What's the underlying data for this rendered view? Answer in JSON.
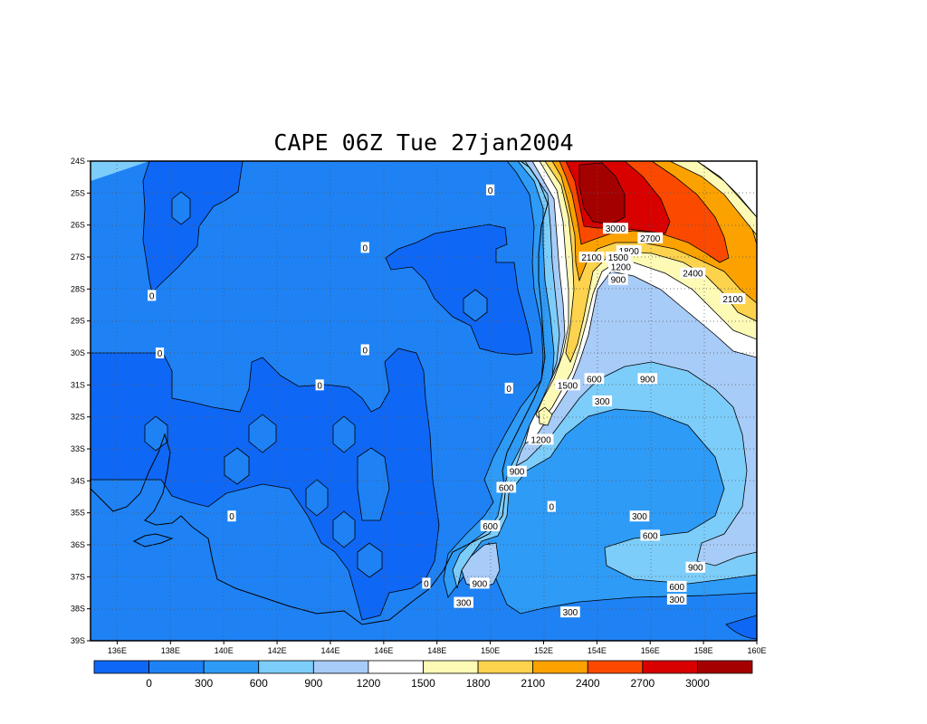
{
  "title": "CAPE 06Z Tue 27jan2004",
  "axes": {
    "y_ticks": [
      "24S",
      "25S",
      "26S",
      "27S",
      "28S",
      "29S",
      "30S",
      "31S",
      "32S",
      "33S",
      "34S",
      "35S",
      "36S",
      "37S",
      "38S",
      "39S"
    ],
    "x_ticks": [
      "136E",
      "138E",
      "140E",
      "142E",
      "144E",
      "146E",
      "148E",
      "150E",
      "152E",
      "154E",
      "156E",
      "158E",
      "160E"
    ],
    "lon_range": [
      135,
      160
    ],
    "lat_range": [
      -24,
      -39
    ],
    "grid": true,
    "grid_style": "dotted"
  },
  "colorbar": {
    "levels": [
      "0",
      "300",
      "600",
      "900",
      "1200",
      "1500",
      "1800",
      "2100",
      "2400",
      "2700",
      "3000"
    ],
    "colors": [
      "#0f67f5",
      "#1e82f5",
      "#2e9bf7",
      "#7dcdfa",
      "#a8ccf8",
      "#ffffff",
      "#fdfab6",
      "#fdd24d",
      "#fba200",
      "#fb4a00",
      "#d90000",
      "#a50000"
    ]
  },
  "chart_data": {
    "type": "heatmap",
    "variable": "CAPE",
    "title": "CAPE 06Z Tue 27jan2004",
    "x_range_deg_east": [
      135,
      160
    ],
    "y_range_deg_south": [
      24,
      39
    ],
    "contour_levels": [
      0,
      300,
      600,
      900,
      1200,
      1500,
      1800,
      2100,
      2400,
      2700,
      3000
    ],
    "contour_labels": [
      {
        "value": "0",
        "lon": 150.0,
        "lat": -24.9
      },
      {
        "value": "0",
        "lon": 145.3,
        "lat": -26.7
      },
      {
        "value": "0",
        "lon": 137.3,
        "lat": -28.2
      },
      {
        "value": "0",
        "lon": 137.6,
        "lat": -30.0
      },
      {
        "value": "0",
        "lon": 145.3,
        "lat": -29.9
      },
      {
        "value": "0",
        "lon": 143.6,
        "lat": -31.0
      },
      {
        "value": "0",
        "lon": 150.7,
        "lat": -31.1
      },
      {
        "value": "0",
        "lon": 140.3,
        "lat": -35.1
      },
      {
        "value": "0",
        "lon": 147.6,
        "lat": -37.2
      },
      {
        "value": "0",
        "lon": 152.3,
        "lat": -34.8
      },
      {
        "value": "3000",
        "lon": 154.7,
        "lat": -26.1
      },
      {
        "value": "2700",
        "lon": 156.0,
        "lat": -26.4
      },
      {
        "value": "2100",
        "lon": 153.8,
        "lat": -27.0
      },
      {
        "value": "1800",
        "lon": 155.2,
        "lat": -26.8
      },
      {
        "value": "1500",
        "lon": 154.8,
        "lat": -27.0
      },
      {
        "value": "1200",
        "lon": 154.9,
        "lat": -27.3
      },
      {
        "value": "900",
        "lon": 154.8,
        "lat": -27.7
      },
      {
        "value": "2400",
        "lon": 157.6,
        "lat": -27.5
      },
      {
        "value": "2100",
        "lon": 159.1,
        "lat": -28.3
      },
      {
        "value": "1500",
        "lon": 152.9,
        "lat": -31.0
      },
      {
        "value": "600",
        "lon": 153.9,
        "lat": -30.8
      },
      {
        "value": "900",
        "lon": 155.9,
        "lat": -30.8
      },
      {
        "value": "300",
        "lon": 154.2,
        "lat": -31.5
      },
      {
        "value": "1200",
        "lon": 151.9,
        "lat": -32.7
      },
      {
        "value": "900",
        "lon": 151.0,
        "lat": -33.7
      },
      {
        "value": "600",
        "lon": 150.6,
        "lat": -34.2
      },
      {
        "value": "600",
        "lon": 150.0,
        "lat": -35.4
      },
      {
        "value": "900",
        "lon": 149.6,
        "lat": -37.2
      },
      {
        "value": "300",
        "lon": 149.0,
        "lat": -37.8
      },
      {
        "value": "300",
        "lon": 155.6,
        "lat": -35.1
      },
      {
        "value": "600",
        "lon": 156.0,
        "lat": -35.7
      },
      {
        "value": "900",
        "lon": 157.7,
        "lat": -36.7
      },
      {
        "value": "600",
        "lon": 157.0,
        "lat": -37.3
      },
      {
        "value": "300",
        "lon": 157.0,
        "lat": -37.7
      },
      {
        "value": "300",
        "lon": 153.0,
        "lat": -38.1
      }
    ]
  }
}
